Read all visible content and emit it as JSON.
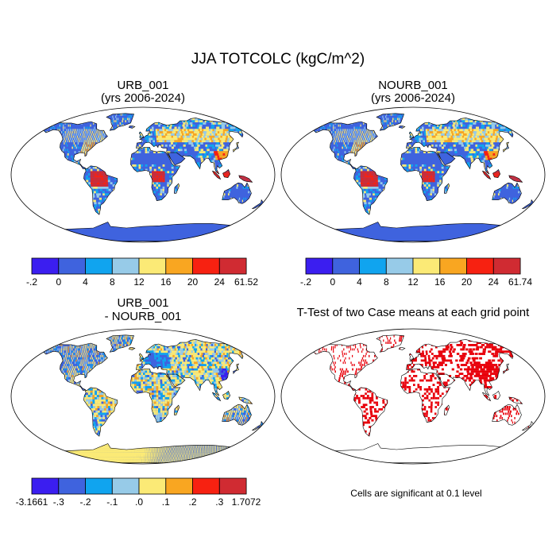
{
  "figure": {
    "title": "JJA TOTCOLC (kgC/m^2)"
  },
  "chart_data": [
    {
      "type": "heatmap",
      "panel": "top-left",
      "title_line1": "URB_001",
      "title_line2": "(yrs 2006-2024)",
      "variable": "TOTCOLC",
      "units": "kgC/m^2",
      "projection": "Robinson",
      "colorbar": {
        "levels": [
          "-.2",
          "0",
          "4",
          "8",
          "12",
          "16",
          "20",
          "24",
          "61.52"
        ],
        "colors": [
          "#3b1ef0",
          "#3f63de",
          "#10a4ef",
          "#97cbe8",
          "#fbea76",
          "#f9a621",
          "#f72111",
          "#d02b32"
        ]
      }
    },
    {
      "type": "heatmap",
      "panel": "top-right",
      "title_line1": "NOURB_001",
      "title_line2": "(yrs 2006-2024)",
      "variable": "TOTCOLC",
      "units": "kgC/m^2",
      "projection": "Robinson",
      "colorbar": {
        "levels": [
          "-.2",
          "0",
          "4",
          "8",
          "12",
          "16",
          "20",
          "24",
          "61.74"
        ],
        "colors": [
          "#3b1ef0",
          "#3f63de",
          "#10a4ef",
          "#97cbe8",
          "#fbea76",
          "#f9a621",
          "#f72111",
          "#d02b32"
        ]
      }
    },
    {
      "type": "heatmap",
      "panel": "bottom-left",
      "title_line1": "URB_001",
      "title_line2": "- NOURB_001",
      "variable": "TOTCOLC difference",
      "projection": "Robinson",
      "colorbar": {
        "levels": [
          "-3.1661",
          "-.3",
          "-.2",
          "-.1",
          ".0",
          ".1",
          ".2",
          ".3",
          "1.7072"
        ],
        "colors": [
          "#3b1ef0",
          "#3f63de",
          "#10a4ef",
          "#97cbe8",
          "#fbea76",
          "#f9a621",
          "#f72111",
          "#d02b32"
        ]
      }
    },
    {
      "type": "heatmap",
      "panel": "bottom-right",
      "title_line1": "T-Test of two Case means at each grid point",
      "projection": "Robinson",
      "note": "Cells are significant at 0.1 level",
      "significant_color": "#e8000b"
    }
  ],
  "palette": {
    "land_colors": [
      "#3b1ef0",
      "#3f63de",
      "#10a4ef",
      "#97cbe8",
      "#fbea76",
      "#f9a621",
      "#f72111",
      "#d02b32"
    ],
    "outline": "#000000",
    "background": "#ffffff"
  }
}
